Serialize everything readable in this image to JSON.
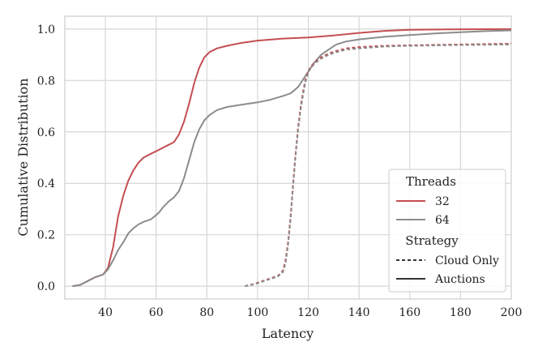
{
  "chart_data": {
    "type": "line",
    "xlabel": "Latency",
    "ylabel": "Cumulative Distribution",
    "xlim": [
      24,
      200
    ],
    "ylim": [
      -0.05,
      1.05
    ],
    "xticks": [
      40,
      60,
      80,
      100,
      120,
      140,
      160,
      180,
      200
    ],
    "yticks": [
      0.0,
      0.2,
      0.4,
      0.6,
      0.8,
      1.0
    ],
    "xtick_labels": [
      "40",
      "60",
      "80",
      "100",
      "120",
      "140",
      "160",
      "180",
      "200"
    ],
    "ytick_labels": [
      "0.0",
      "0.2",
      "0.4",
      "0.6",
      "0.8",
      "1.0"
    ],
    "grid": true,
    "legend": {
      "placement": "lower-right",
      "threads_title": "Threads",
      "strategy_title": "Strategy",
      "threads": [
        {
          "label": "32",
          "color": "#c44e52"
        },
        {
          "label": "64",
          "color": "#8c8c8c"
        }
      ],
      "strategies": [
        {
          "label": "Cloud Only",
          "dash": "dashed"
        },
        {
          "label": "Auctions",
          "dash": "solid"
        }
      ]
    },
    "series": [
      {
        "threads": "32",
        "strategy": "Auctions",
        "color": "#c44e52",
        "dash": "solid",
        "points": [
          [
            27,
            0.0
          ],
          [
            30,
            0.005
          ],
          [
            33,
            0.02
          ],
          [
            36,
            0.035
          ],
          [
            39,
            0.045
          ],
          [
            41,
            0.07
          ],
          [
            43,
            0.15
          ],
          [
            45,
            0.27
          ],
          [
            47,
            0.35
          ],
          [
            49,
            0.41
          ],
          [
            51,
            0.45
          ],
          [
            53,
            0.48
          ],
          [
            55,
            0.5
          ],
          [
            58,
            0.515
          ],
          [
            61,
            0.53
          ],
          [
            64,
            0.545
          ],
          [
            67,
            0.56
          ],
          [
            69,
            0.59
          ],
          [
            71,
            0.64
          ],
          [
            73,
            0.71
          ],
          [
            75,
            0.79
          ],
          [
            77,
            0.85
          ],
          [
            79,
            0.89
          ],
          [
            81,
            0.91
          ],
          [
            84,
            0.925
          ],
          [
            88,
            0.935
          ],
          [
            93,
            0.945
          ],
          [
            100,
            0.955
          ],
          [
            110,
            0.963
          ],
          [
            120,
            0.967
          ],
          [
            130,
            0.975
          ],
          [
            140,
            0.985
          ],
          [
            150,
            0.993
          ],
          [
            160,
            0.997
          ],
          [
            175,
            0.999
          ],
          [
            200,
            1.0
          ]
        ]
      },
      {
        "threads": "64",
        "strategy": "Auctions",
        "color": "#8c8c8c",
        "dash": "solid",
        "points": [
          [
            27,
            0.0
          ],
          [
            30,
            0.005
          ],
          [
            33,
            0.02
          ],
          [
            36,
            0.035
          ],
          [
            39,
            0.045
          ],
          [
            41,
            0.065
          ],
          [
            43,
            0.1
          ],
          [
            45,
            0.14
          ],
          [
            47,
            0.17
          ],
          [
            49,
            0.205
          ],
          [
            51,
            0.225
          ],
          [
            53,
            0.24
          ],
          [
            55,
            0.25
          ],
          [
            58,
            0.26
          ],
          [
            61,
            0.285
          ],
          [
            63,
            0.31
          ],
          [
            65,
            0.33
          ],
          [
            67,
            0.345
          ],
          [
            69,
            0.37
          ],
          [
            71,
            0.42
          ],
          [
            73,
            0.49
          ],
          [
            75,
            0.56
          ],
          [
            77,
            0.61
          ],
          [
            79,
            0.645
          ],
          [
            81,
            0.665
          ],
          [
            84,
            0.685
          ],
          [
            88,
            0.697
          ],
          [
            93,
            0.705
          ],
          [
            100,
            0.715
          ],
          [
            105,
            0.725
          ],
          [
            110,
            0.74
          ],
          [
            113,
            0.75
          ],
          [
            116,
            0.775
          ],
          [
            119,
            0.82
          ],
          [
            122,
            0.865
          ],
          [
            125,
            0.9
          ],
          [
            128,
            0.92
          ],
          [
            131,
            0.94
          ],
          [
            135,
            0.952
          ],
          [
            140,
            0.96
          ],
          [
            150,
            0.97
          ],
          [
            160,
            0.977
          ],
          [
            170,
            0.983
          ],
          [
            180,
            0.988
          ],
          [
            190,
            0.992
          ],
          [
            200,
            0.995
          ]
        ]
      },
      {
        "threads": "32",
        "strategy": "Cloud Only",
        "color": "#c44e52",
        "dash": "dashed",
        "points": [
          [
            95,
            0.0
          ],
          [
            99,
            0.01
          ],
          [
            102,
            0.02
          ],
          [
            105,
            0.03
          ],
          [
            108,
            0.04
          ],
          [
            110,
            0.06
          ],
          [
            111,
            0.1
          ],
          [
            112,
            0.17
          ],
          [
            113,
            0.27
          ],
          [
            114,
            0.4
          ],
          [
            115,
            0.52
          ],
          [
            116,
            0.62
          ],
          [
            117,
            0.7
          ],
          [
            118,
            0.76
          ],
          [
            119,
            0.81
          ],
          [
            120,
            0.835
          ],
          [
            121,
            0.855
          ],
          [
            123,
            0.875
          ],
          [
            125,
            0.89
          ],
          [
            128,
            0.905
          ],
          [
            131,
            0.915
          ],
          [
            135,
            0.925
          ],
          [
            140,
            0.93
          ],
          [
            150,
            0.935
          ],
          [
            160,
            0.937
          ],
          [
            180,
            0.94
          ],
          [
            200,
            0.943
          ]
        ]
      },
      {
        "threads": "64",
        "strategy": "Cloud Only",
        "color": "#8c8c8c",
        "dash": "dashed",
        "points": [
          [
            95,
            0.0
          ],
          [
            99,
            0.008
          ],
          [
            102,
            0.018
          ],
          [
            105,
            0.028
          ],
          [
            108,
            0.038
          ],
          [
            110,
            0.055
          ],
          [
            111,
            0.09
          ],
          [
            112,
            0.16
          ],
          [
            113,
            0.26
          ],
          [
            114,
            0.39
          ],
          [
            115,
            0.51
          ],
          [
            116,
            0.61
          ],
          [
            117,
            0.69
          ],
          [
            118,
            0.75
          ],
          [
            119,
            0.8
          ],
          [
            120,
            0.83
          ],
          [
            121,
            0.85
          ],
          [
            123,
            0.87
          ],
          [
            125,
            0.885
          ],
          [
            128,
            0.9
          ],
          [
            131,
            0.91
          ],
          [
            135,
            0.92
          ],
          [
            140,
            0.925
          ],
          [
            150,
            0.932
          ],
          [
            160,
            0.935
          ],
          [
            180,
            0.938
          ],
          [
            200,
            0.94
          ]
        ]
      }
    ]
  }
}
